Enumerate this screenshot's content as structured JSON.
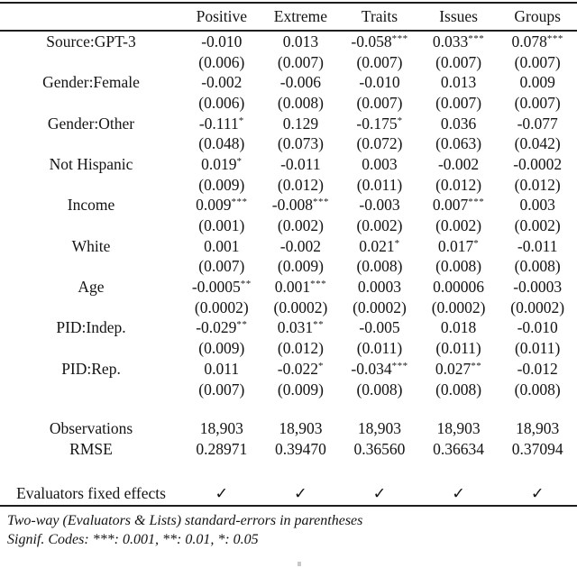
{
  "table": {
    "columns": [
      "Positive",
      "Extreme",
      "Traits",
      "Issues",
      "Groups"
    ],
    "coefficients": [
      {
        "label": "Source:GPT-3",
        "estimates": [
          "-0.010",
          "0.013",
          "-0.058***",
          "0.033***",
          "0.078***"
        ],
        "std_errors": [
          "(0.006)",
          "(0.007)",
          "(0.007)",
          "(0.007)",
          "(0.007)"
        ]
      },
      {
        "label": "Gender:Female",
        "estimates": [
          "-0.002",
          "-0.006",
          "-0.010",
          "0.013",
          "0.009"
        ],
        "std_errors": [
          "(0.006)",
          "(0.008)",
          "(0.007)",
          "(0.007)",
          "(0.007)"
        ]
      },
      {
        "label": "Gender:Other",
        "estimates": [
          "-0.111*",
          "0.129",
          "-0.175*",
          "0.036",
          "-0.077"
        ],
        "std_errors": [
          "(0.048)",
          "(0.073)",
          "(0.072)",
          "(0.063)",
          "(0.042)"
        ]
      },
      {
        "label": "Not Hispanic",
        "estimates": [
          "0.019*",
          "-0.011",
          "0.003",
          "-0.002",
          "-0.0002"
        ],
        "std_errors": [
          "(0.009)",
          "(0.012)",
          "(0.011)",
          "(0.012)",
          "(0.012)"
        ]
      },
      {
        "label": "Income",
        "estimates": [
          "0.009***",
          "-0.008***",
          "-0.003",
          "0.007***",
          "0.003"
        ],
        "std_errors": [
          "(0.001)",
          "(0.002)",
          "(0.002)",
          "(0.002)",
          "(0.002)"
        ]
      },
      {
        "label": "White",
        "estimates": [
          "0.001",
          "-0.002",
          "0.021*",
          "0.017*",
          "-0.011"
        ],
        "std_errors": [
          "(0.007)",
          "(0.009)",
          "(0.008)",
          "(0.008)",
          "(0.008)"
        ]
      },
      {
        "label": "Age",
        "estimates": [
          "-0.0005**",
          "0.001***",
          "0.0003",
          "0.00006",
          "-0.0003"
        ],
        "std_errors": [
          "(0.0002)",
          "(0.0002)",
          "(0.0002)",
          "(0.0002)",
          "(0.0002)"
        ]
      },
      {
        "label": "PID:Indep.",
        "estimates": [
          "-0.029**",
          "0.031**",
          "-0.005",
          "0.018",
          "-0.010"
        ],
        "std_errors": [
          "(0.009)",
          "(0.012)",
          "(0.011)",
          "(0.011)",
          "(0.011)"
        ]
      },
      {
        "label": "PID:Rep.",
        "estimates": [
          "0.011",
          "-0.022*",
          "-0.034***",
          "0.027**",
          "-0.012"
        ],
        "std_errors": [
          "(0.007)",
          "(0.009)",
          "(0.008)",
          "(0.008)",
          "(0.008)"
        ]
      }
    ],
    "fit_statistics": [
      {
        "label": "Observations",
        "values": [
          "18,903",
          "18,903",
          "18,903",
          "18,903",
          "18,903"
        ]
      },
      {
        "label": "RMSE",
        "values": [
          "0.28971",
          "0.39470",
          "0.36560",
          "0.36634",
          "0.37094"
        ]
      }
    ],
    "fixed_effects": {
      "label": "Evaluators fixed effects",
      "values": [
        "✓",
        "✓",
        "✓",
        "✓",
        "✓"
      ]
    },
    "notes": [
      "Two-way (Evaluators & Lists) standard-errors in parentheses",
      "Signif. Codes: ***: 0.001, **: 0.01, *: 0.05"
    ]
  }
}
